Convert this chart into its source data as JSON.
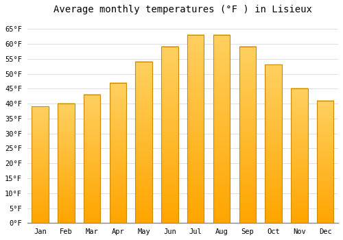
{
  "months": [
    "Jan",
    "Feb",
    "Mar",
    "Apr",
    "May",
    "Jun",
    "Jul",
    "Aug",
    "Sep",
    "Oct",
    "Nov",
    "Dec"
  ],
  "values": [
    39,
    40,
    43,
    47,
    54,
    59,
    63,
    63,
    59,
    53,
    45,
    41
  ],
  "bar_color_top": "#FFD060",
  "bar_color_bottom": "#FFA500",
  "bar_edge_color": "#CC8800",
  "title": "Average monthly temperatures (°F ) in Lisieux",
  "ylim": [
    0,
    68
  ],
  "yticks": [
    0,
    5,
    10,
    15,
    20,
    25,
    30,
    35,
    40,
    45,
    50,
    55,
    60,
    65
  ],
  "background_color": "#ffffff",
  "grid_color": "#e0e0e0",
  "title_fontsize": 10,
  "tick_fontsize": 7.5,
  "font_family": "monospace",
  "bar_width": 0.65
}
